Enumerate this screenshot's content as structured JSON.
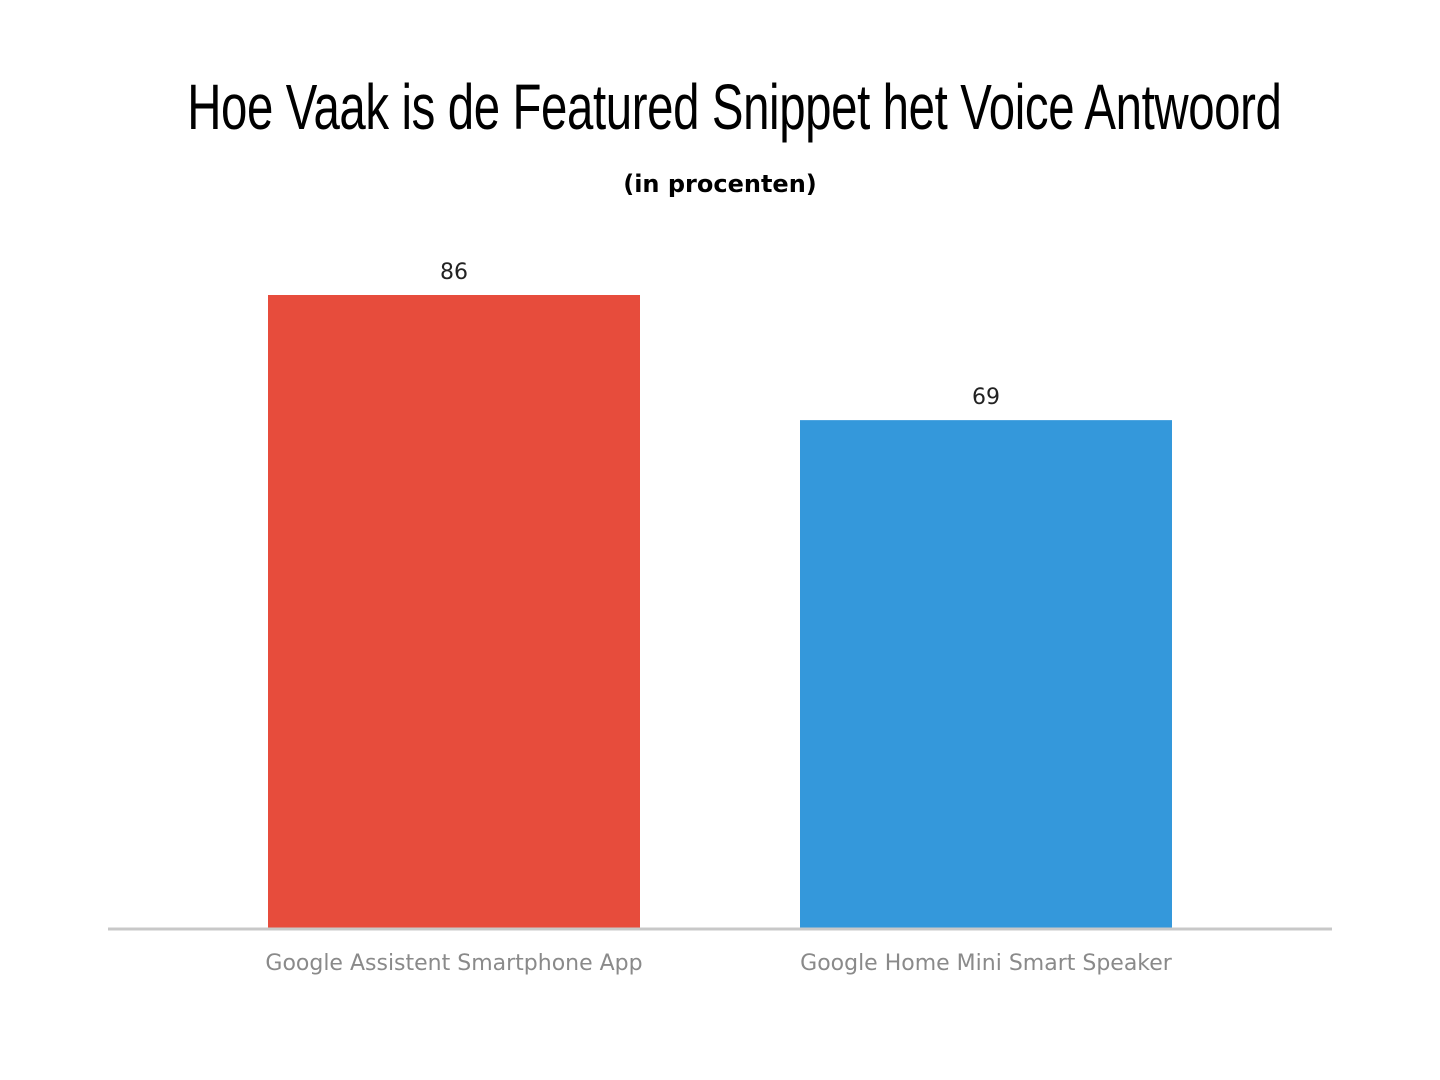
{
  "chart_data": {
    "type": "bar",
    "title": "Hoe Vaak is de Featured Snippet het Voice Antwoord",
    "subtitle": "(in procenten)",
    "categories": [
      "Google Assistent Smartphone App",
      "Google Home Mini Smart Speaker"
    ],
    "values": [
      86,
      69
    ],
    "colors": [
      "#e74c3c",
      "#3498db"
    ],
    "ylim": [
      0,
      86
    ],
    "grid": false,
    "xlabel": "",
    "ylabel": "",
    "axis_color": "#c8c8c8"
  }
}
